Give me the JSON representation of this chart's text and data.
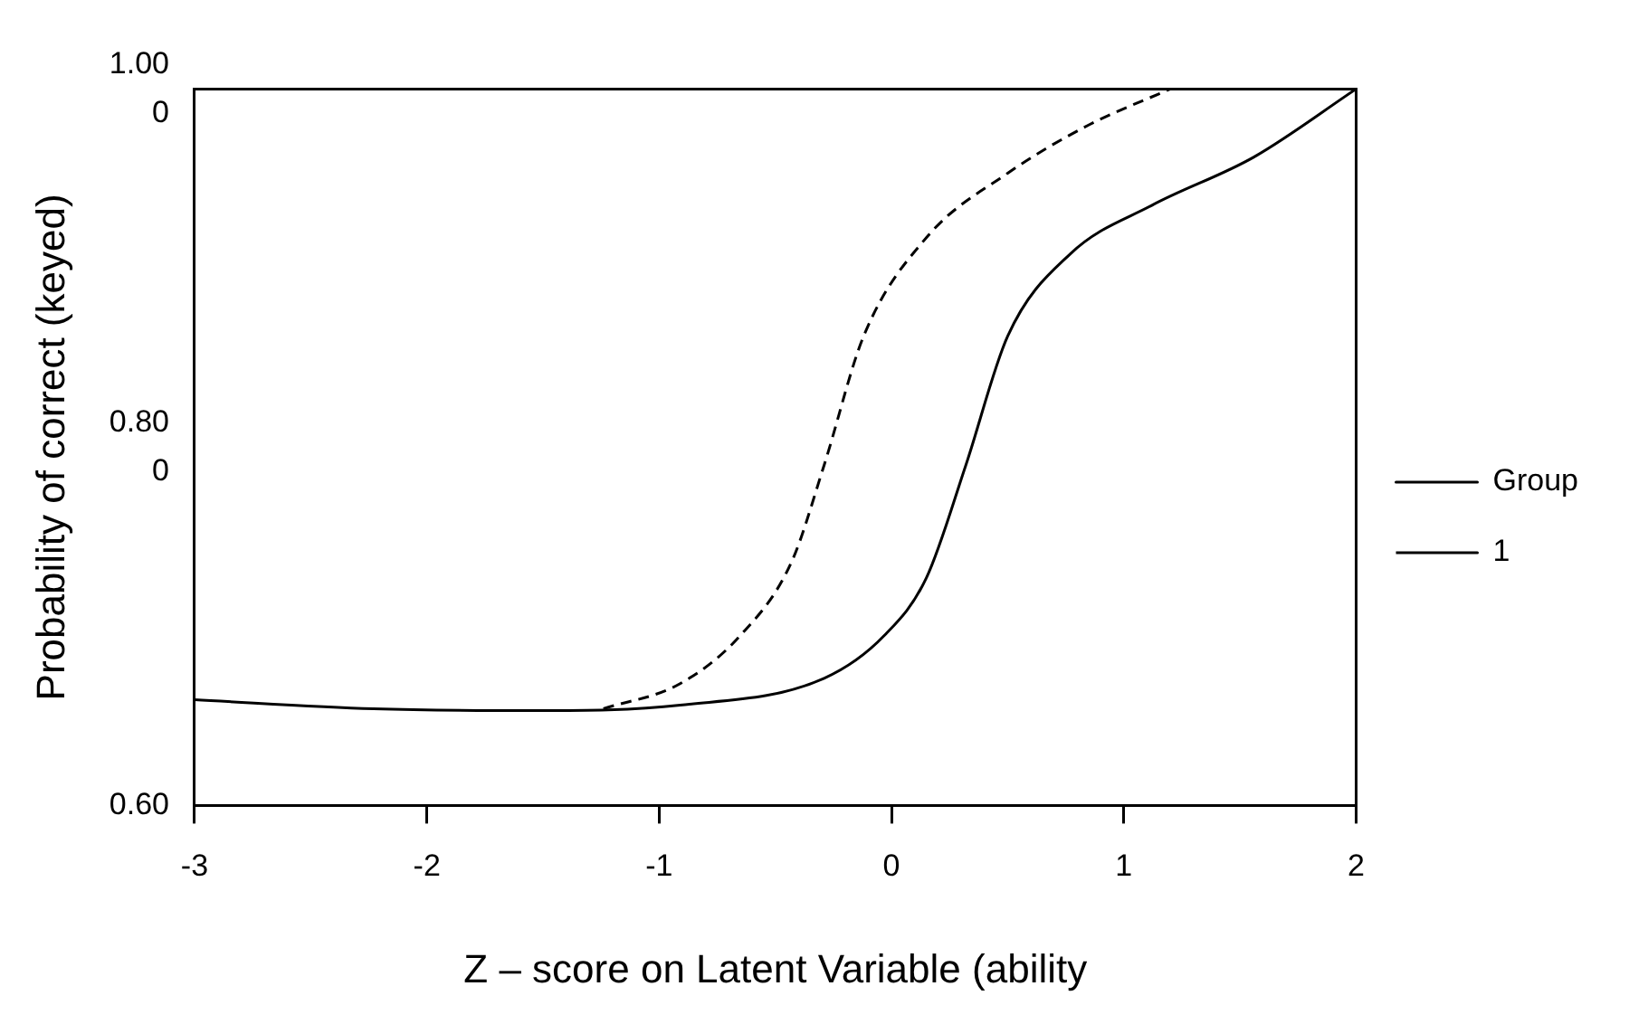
{
  "chart_data": {
    "type": "line",
    "xlabel": "Z – score on Latent Variable (ability",
    "ylabel": "Probability of correct (keyed)",
    "xlim": [
      -3,
      2
    ],
    "xticks": [
      -3,
      -2,
      -1,
      0,
      1,
      2
    ],
    "ylim": [
      0.6,
      1.0
    ],
    "yticks": [
      {
        "value": 0.6,
        "label": "0.60"
      },
      {
        "value": 0.8,
        "label": "0.800"
      },
      {
        "value": 1.0,
        "label": "1.000"
      }
    ],
    "grid": false,
    "legend": "right",
    "marker": "none",
    "series": [
      {
        "name": "Group",
        "color": "#000000",
        "line_style": "solid",
        "x": [
          -3,
          -2.23,
          -1.53,
          -0.91,
          -0.29,
          -0.03,
          0.15,
          0.32,
          0.5,
          0.77,
          1.12,
          1.56,
          2.0
        ],
        "values": [
          0.659,
          0.654,
          0.653,
          0.656,
          0.671,
          0.695,
          0.727,
          0.79,
          0.862,
          0.908,
          0.935,
          0.962,
          1.0
        ]
      },
      {
        "name": "1",
        "color": "#000000",
        "line_style": "dashed",
        "x": [
          -1.24,
          -0.91,
          -0.65,
          -0.43,
          -0.29,
          -0.12,
          0.15,
          0.5,
          0.85,
          1.2
        ],
        "values": [
          0.654,
          0.668,
          0.695,
          0.736,
          0.79,
          0.862,
          0.917,
          0.953,
          0.98,
          1.0
        ]
      }
    ]
  }
}
